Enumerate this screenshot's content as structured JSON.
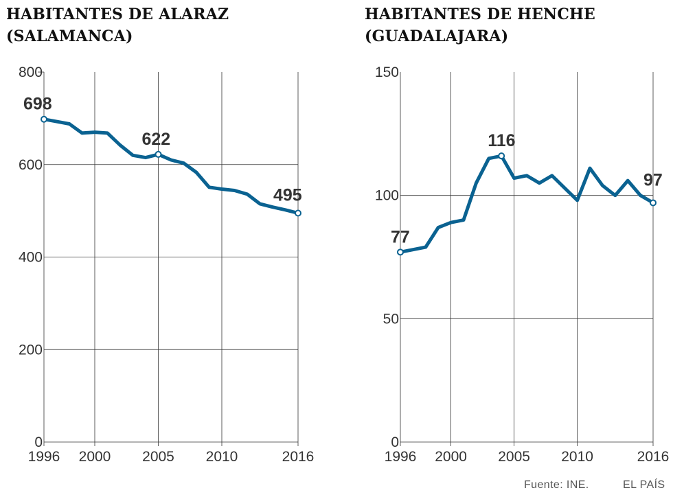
{
  "colors": {
    "line": "#0a6291",
    "grid": "#333333",
    "text": "#333333"
  },
  "chart_data": [
    {
      "type": "line",
      "title": "HABITANTES DE ALARAZ",
      "subtitle": "(SALAMANCA)",
      "xlim": [
        1996,
        2016
      ],
      "ylim": [
        0,
        800
      ],
      "yticks": [
        0,
        200,
        400,
        600,
        800
      ],
      "xticks": [
        1996,
        2000,
        2005,
        2010,
        2016
      ],
      "x": [
        1996,
        1997,
        1998,
        1999,
        2000,
        2001,
        2002,
        2003,
        2004,
        2005,
        2006,
        2007,
        2008,
        2009,
        2010,
        2011,
        2012,
        2013,
        2014,
        2015,
        2016
      ],
      "y": [
        698,
        693,
        688,
        668,
        670,
        668,
        642,
        620,
        615,
        622,
        610,
        603,
        583,
        551,
        547,
        544,
        536,
        515,
        508,
        502,
        495
      ],
      "labels": [
        {
          "x": 1996,
          "y": 698,
          "text": "698"
        },
        {
          "x": 2005,
          "y": 622,
          "text": "622"
        },
        {
          "x": 2016,
          "y": 495,
          "text": "495"
        }
      ],
      "grid": true
    },
    {
      "type": "line",
      "title": "HABITANTES DE HENCHE",
      "subtitle": "(GUADALAJARA)",
      "xlim": [
        1996,
        2016
      ],
      "ylim": [
        0,
        150
      ],
      "yticks": [
        0,
        50,
        100,
        150
      ],
      "xticks": [
        1996,
        2000,
        2005,
        2010,
        2016
      ],
      "x": [
        1996,
        1997,
        1998,
        1999,
        2000,
        2001,
        2002,
        2003,
        2004,
        2005,
        2006,
        2007,
        2008,
        2009,
        2010,
        2011,
        2012,
        2013,
        2014,
        2015,
        2016
      ],
      "y": [
        77,
        78,
        79,
        87,
        89,
        90,
        105,
        115,
        116,
        107,
        108,
        105,
        108,
        103,
        98,
        111,
        104,
        100,
        106,
        100,
        97
      ],
      "labels": [
        {
          "x": 1996,
          "y": 77,
          "text": "77"
        },
        {
          "x": 2004,
          "y": 116,
          "text": "116"
        },
        {
          "x": 2016,
          "y": 97,
          "text": "97"
        }
      ],
      "grid": true
    }
  ],
  "footer": {
    "source": "Fuente: INE.",
    "brand": "EL PAÍS"
  }
}
